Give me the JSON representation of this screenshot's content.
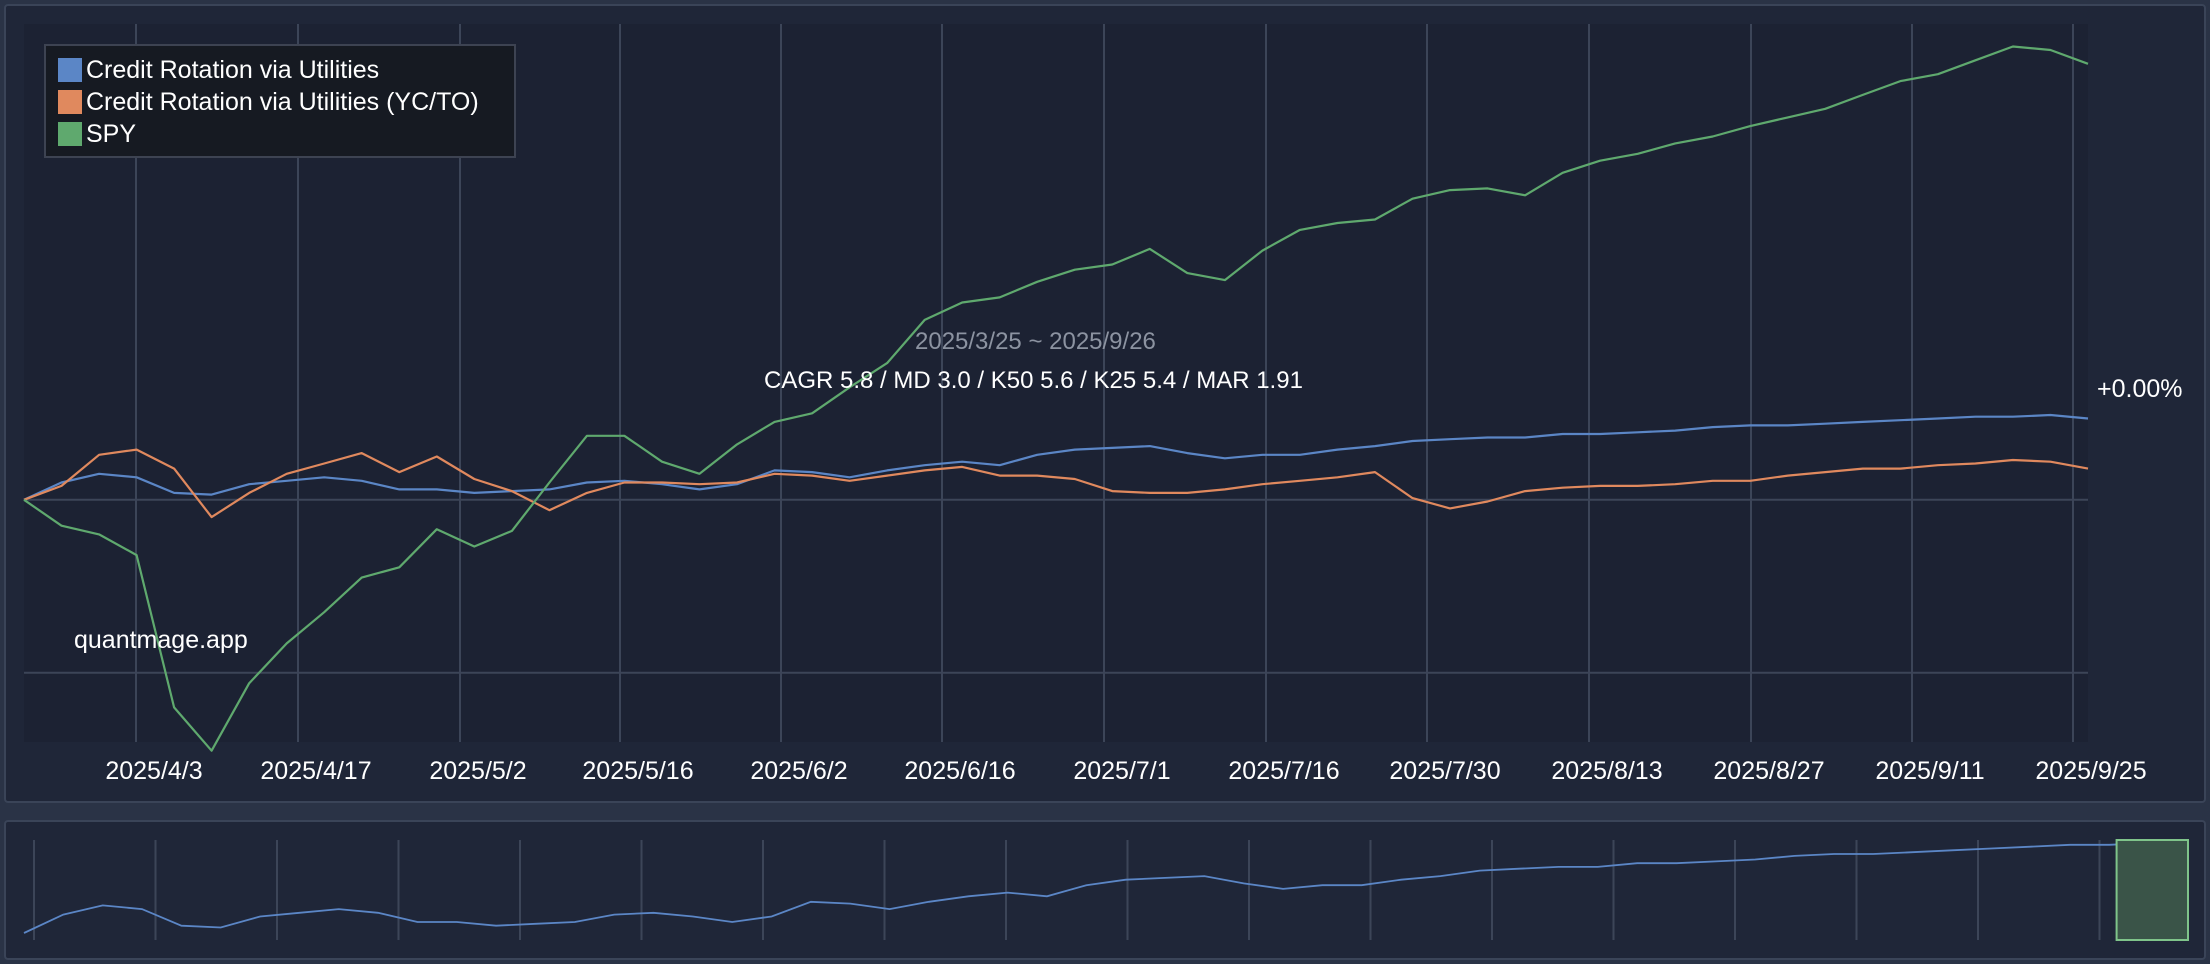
{
  "chart_data": {
    "type": "line",
    "title": "",
    "period": "2025/3/25 ~ 2025/9/26",
    "stats": "CAGR 5.8 / MD 3.0 / K50 5.6 / K25 5.4 / MAR 1.91",
    "watermark": "quantmage.app",
    "y_label": "+0.00%",
    "grid": true,
    "legend_placement": "top-left",
    "x_ticks": [
      "2025/4/3",
      "2025/4/17",
      "2025/5/2",
      "2025/5/16",
      "2025/6/2",
      "2025/6/16",
      "2025/7/1",
      "2025/7/16",
      "2025/7/30",
      "2025/8/13",
      "2025/8/27",
      "2025/9/11",
      "2025/9/25"
    ],
    "series": [
      {
        "name": "Credit Rotation via Utilities",
        "color": "#5b86c6",
        "values": [
          0.0,
          1.0,
          1.5,
          1.3,
          0.4,
          0.3,
          0.9,
          1.1,
          1.3,
          1.1,
          0.6,
          0.6,
          0.4,
          0.5,
          0.6,
          1.0,
          1.1,
          0.9,
          0.6,
          0.9,
          1.7,
          1.6,
          1.3,
          1.7,
          2.0,
          2.2,
          2.0,
          2.6,
          2.9,
          3.0,
          3.1,
          2.7,
          2.4,
          2.6,
          2.6,
          2.9,
          3.1,
          3.4,
          3.5,
          3.6,
          3.6,
          3.8,
          3.8,
          3.9,
          4.0,
          4.2,
          4.3,
          4.3,
          4.4,
          4.5,
          4.6,
          4.7,
          4.8,
          4.8,
          4.9,
          4.7
        ]
      },
      {
        "name": "Credit Rotation via Utilities (YC/TO)",
        "color": "#e0895e",
        "values": [
          0.0,
          0.8,
          2.6,
          2.9,
          1.8,
          -1.0,
          0.4,
          1.5,
          2.1,
          2.7,
          1.6,
          2.5,
          1.2,
          0.5,
          -0.6,
          0.4,
          1.0,
          1.0,
          0.9,
          1.0,
          1.5,
          1.4,
          1.1,
          1.4,
          1.7,
          1.9,
          1.4,
          1.4,
          1.2,
          0.5,
          0.4,
          0.4,
          0.6,
          0.9,
          1.1,
          1.3,
          1.6,
          0.1,
          -0.5,
          -0.1,
          0.5,
          0.7,
          0.8,
          0.8,
          0.9,
          1.1,
          1.1,
          1.4,
          1.6,
          1.8,
          1.8,
          2.0,
          2.1,
          2.3,
          2.2,
          1.8
        ]
      },
      {
        "name": "SPY",
        "color": "#5fa96e",
        "values": [
          0.0,
          -1.5,
          -2.0,
          -3.2,
          -12.0,
          -14.5,
          -10.6,
          -8.3,
          -6.5,
          -4.5,
          -3.9,
          -1.7,
          -2.7,
          -1.8,
          1.0,
          3.7,
          3.7,
          2.2,
          1.5,
          3.2,
          4.5,
          5.0,
          6.5,
          7.9,
          10.4,
          11.4,
          11.7,
          12.6,
          13.3,
          13.6,
          14.5,
          13.1,
          12.7,
          14.4,
          15.6,
          16.0,
          16.2,
          17.4,
          17.9,
          18.0,
          17.6,
          18.9,
          19.6,
          20.0,
          20.6,
          21.0,
          21.6,
          22.1,
          22.6,
          23.4,
          24.2,
          24.6,
          25.4,
          26.2,
          26.0,
          25.2
        ]
      }
    ],
    "ylim": [
      -14,
      27.5
    ]
  },
  "navigator": {
    "selection_start": 0.967,
    "selection_end": 1.0
  }
}
